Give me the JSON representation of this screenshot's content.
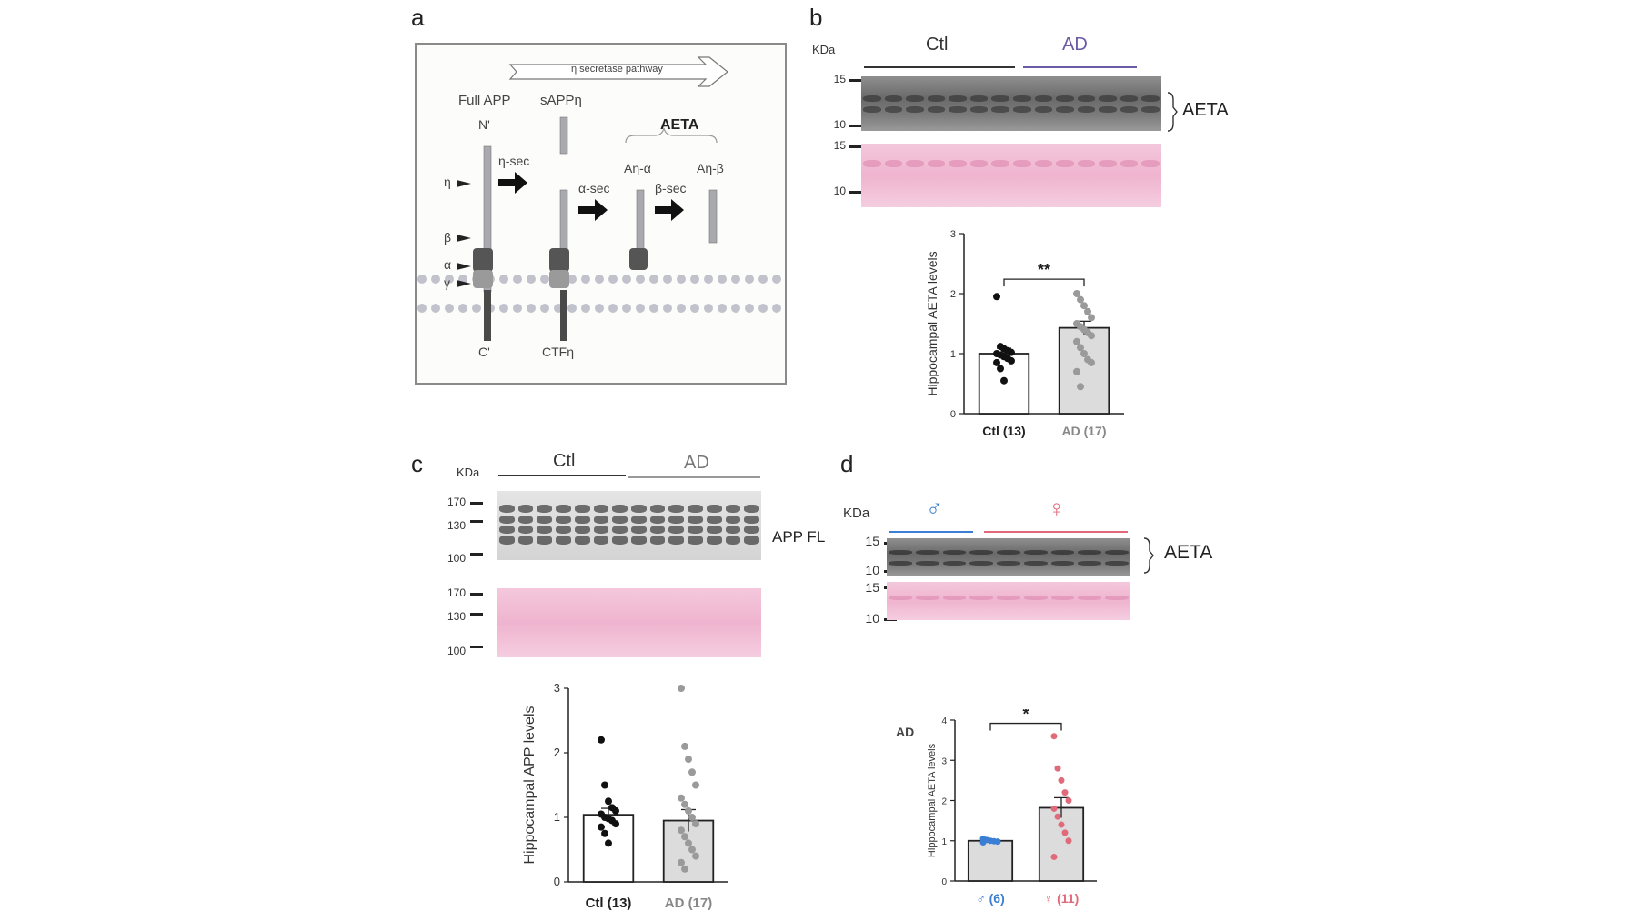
{
  "panels": {
    "a": {
      "letter": "a",
      "pathway_label": "η secretase pathway",
      "full_app": "Full APP",
      "sapp": "sAPPη",
      "n_term": "N'",
      "c_term": "C'",
      "ctf": "CTFη",
      "aeta": "AETA",
      "eta_sec": "η-sec",
      "alpha_sec": "α-sec",
      "beta_sec": "β-sec",
      "an_alpha": "Aη-α",
      "an_beta": "Aη-β",
      "site_eta": "η",
      "site_beta": "β",
      "site_alpha": "α",
      "site_gamma": "γ"
    },
    "b": {
      "letter": "b",
      "kda": "KDa",
      "group_ctl": "Ctl",
      "group_ad": "AD",
      "mw_top": [
        "15",
        "10"
      ],
      "mw_bottom": [
        "15",
        "10"
      ],
      "protein": "AETA",
      "colors": {
        "ctl_line": "#333333",
        "ad_line": "#6b5aa6",
        "ad_text": "#6b5aa6"
      }
    },
    "c": {
      "letter": "c",
      "kda": "KDa",
      "group_ctl": "Ctl",
      "group_ad": "AD",
      "mw_top": [
        "170",
        "130",
        "100"
      ],
      "mw_bottom": [
        "170",
        "130",
        "100"
      ],
      "protein": "APP FL"
    },
    "d": {
      "letter": "d",
      "kda": "KDa",
      "group_male": "♂",
      "group_female": "♀",
      "mw_top": [
        "15",
        "10"
      ],
      "mw_bottom": [
        "15",
        "10"
      ],
      "protein": "AETA",
      "inset_label": "AD",
      "colors": {
        "male": "#3b7fd4",
        "female": "#e06a7a"
      }
    }
  },
  "chart_data": [
    {
      "id": "b",
      "type": "bar",
      "ylabel": "Hippocampal AETA levels",
      "ylim": [
        0,
        3
      ],
      "yticks": [
        "0",
        "1",
        "2",
        "3"
      ],
      "categories": [
        "Ctl (13)",
        "AD (17)"
      ],
      "values": [
        1.0,
        1.43
      ],
      "sem": [
        0.09,
        0.11
      ],
      "bar_colors": [
        "#ffffff",
        "#dcdcdc"
      ],
      "point_colors": [
        "#111111",
        "#9a9a9a"
      ],
      "label_colors": [
        "#222222",
        "#888888"
      ],
      "points": [
        [
          1.95,
          1.12,
          1.08,
          1.05,
          1.02,
          1.0,
          0.98,
          0.95,
          0.92,
          0.88,
          0.85,
          0.75,
          0.55
        ],
        [
          2.0,
          1.9,
          1.8,
          1.7,
          1.6,
          1.5,
          1.45,
          1.4,
          1.35,
          1.3,
          1.2,
          1.1,
          1.0,
          0.9,
          0.85,
          0.7,
          0.45
        ]
      ],
      "significance": "**"
    },
    {
      "id": "c",
      "type": "bar",
      "ylabel": "Hippocampal APP levels",
      "ylim": [
        0,
        3
      ],
      "yticks": [
        "0",
        "1",
        "2",
        "3"
      ],
      "categories": [
        "Ctl (13)",
        "AD (17)"
      ],
      "values": [
        1.04,
        0.95
      ],
      "sem": [
        0.1,
        0.17
      ],
      "bar_colors": [
        "#ffffff",
        "#dcdcdc"
      ],
      "point_colors": [
        "#111111",
        "#9a9a9a"
      ],
      "label_colors": [
        "#222222",
        "#888888"
      ],
      "points": [
        [
          2.2,
          1.5,
          1.25,
          1.15,
          1.1,
          1.05,
          1.0,
          0.98,
          0.95,
          0.9,
          0.85,
          0.75,
          0.6
        ],
        [
          3.0,
          2.1,
          1.9,
          1.7,
          1.5,
          1.3,
          1.2,
          1.1,
          1.0,
          0.9,
          0.8,
          0.7,
          0.6,
          0.5,
          0.4,
          0.3,
          0.2
        ]
      ],
      "significance": ""
    },
    {
      "id": "d",
      "type": "bar",
      "ylabel": "Hippocampal AETA levels",
      "ylim": [
        0,
        4
      ],
      "yticks": [
        "0",
        "1",
        "2",
        "3",
        "4"
      ],
      "categories": [
        "♂ (6)",
        "♀ (11)"
      ],
      "values": [
        1.0,
        1.82
      ],
      "sem": [
        0.03,
        0.25
      ],
      "bar_colors": [
        "#dcdcdc",
        "#dcdcdc"
      ],
      "point_colors": [
        "#3b7fd4",
        "#e06a7a"
      ],
      "label_colors": [
        "#3b7fd4",
        "#e06a7a"
      ],
      "points": [
        [
          1.05,
          1.02,
          1.0,
          0.99,
          0.98,
          0.96
        ],
        [
          3.6,
          2.8,
          2.5,
          2.2,
          2.0,
          1.8,
          1.6,
          1.4,
          1.2,
          1.0,
          0.6
        ]
      ],
      "significance": "*"
    }
  ]
}
